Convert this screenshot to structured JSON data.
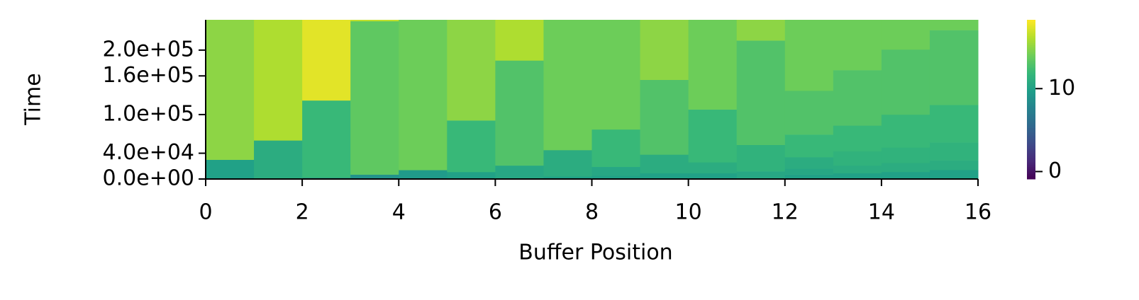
{
  "chart_data": {
    "type": "heatmap",
    "x_label": "Buffer Position",
    "y_label": "Time",
    "xlim": [
      0,
      16
    ],
    "xticks": [
      0,
      2,
      4,
      6,
      8,
      10,
      12,
      14,
      16
    ],
    "ylim": [
      0,
      247000
    ],
    "yticks": [
      {
        "value": 0,
        "label": "0.0e+00"
      },
      {
        "value": 40000,
        "label": "4.0e+04"
      },
      {
        "value": 100000,
        "label": "1.0e+05"
      },
      {
        "value": 160000,
        "label": "1.6e+05"
      },
      {
        "value": 200000,
        "label": "2.0e+05"
      }
    ],
    "colormap": "viridis",
    "clim": [
      -0.9,
      18.3
    ],
    "cticks": [
      0,
      10
    ],
    "columns": [
      {
        "edges": [
          0,
          30000,
          247000
        ],
        "values": [
          10,
          15
        ]
      },
      {
        "edges": [
          0,
          60000,
          247000
        ],
        "values": [
          11,
          16
        ]
      },
      {
        "edges": [
          0,
          2000,
          122000,
          247000
        ],
        "values": [
          8,
          12,
          17.5
        ]
      },
      {
        "edges": [
          0,
          7000,
          245000,
          247000
        ],
        "values": [
          9,
          13.5,
          16.5
        ]
      },
      {
        "edges": [
          0,
          14000,
          247000
        ],
        "values": [
          9.5,
          14
        ]
      },
      {
        "edges": [
          0,
          11000,
          91000,
          247000
        ],
        "values": [
          10,
          12,
          15
        ]
      },
      {
        "edges": [
          0,
          21000,
          184000,
          247000
        ],
        "values": [
          10.5,
          13,
          16
        ]
      },
      {
        "edges": [
          0,
          4000,
          45000,
          247000
        ],
        "values": [
          10,
          11,
          14
        ]
      },
      {
        "edges": [
          0,
          5000,
          19000,
          77000,
          247000
        ],
        "values": [
          10,
          10.5,
          12,
          14
        ]
      },
      {
        "edges": [
          0,
          9000,
          38000,
          154000,
          247000
        ],
        "values": [
          10,
          11,
          13,
          15
        ]
      },
      {
        "edges": [
          0,
          9000,
          26000,
          108000,
          247000
        ],
        "values": [
          10,
          11,
          12,
          14
        ]
      },
      {
        "edges": [
          0,
          12000,
          53000,
          215000,
          247000
        ],
        "values": [
          10.5,
          11.5,
          13,
          15
        ]
      },
      {
        "edges": [
          0,
          7000,
          16000,
          34000,
          69000,
          137000,
          247000
        ],
        "values": [
          10,
          10.5,
          11,
          12,
          13,
          14
        ]
      },
      {
        "edges": [
          0,
          9000,
          21000,
          43000,
          83000,
          169000,
          247000
        ],
        "values": [
          10,
          11,
          11.5,
          12,
          13,
          14
        ]
      },
      {
        "edges": [
          0,
          11000,
          25000,
          49000,
          100000,
          201000,
          247000
        ],
        "values": [
          10,
          11,
          11.5,
          12,
          13,
          14
        ]
      },
      {
        "edges": [
          0,
          14000,
          29000,
          57000,
          115000,
          231000,
          247000
        ],
        "values": [
          10,
          11,
          11.5,
          12,
          13,
          14
        ]
      }
    ]
  }
}
